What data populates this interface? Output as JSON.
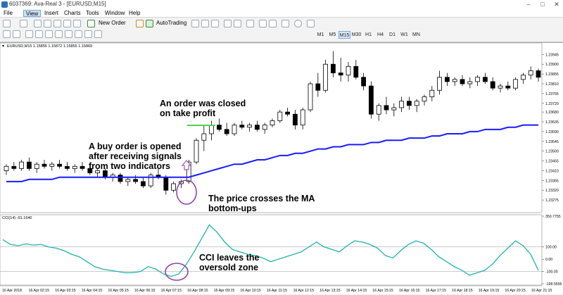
{
  "window": {
    "title": "6037369: Ava-Real 3 - [EURUSD,M15]"
  },
  "menu": [
    "File",
    "View",
    "Insert",
    "Charts",
    "Tools",
    "Window",
    "Help"
  ],
  "menu_active": "View",
  "toolbar": {
    "new_order_label": "New Order",
    "autotrading_label": "AutoTrading",
    "timeframes": [
      "M1",
      "M5",
      "M15",
      "M30",
      "H1",
      "H4",
      "D1",
      "W1",
      "MN"
    ],
    "selected_timeframe": "M15"
  },
  "chart_header": "EURUSD,M15  1.15855 1.15872 1.15855 1.15869",
  "indicator_header": "CCI(14) -91.1640",
  "annotations": {
    "order_closed": [
      "An order was closed",
      "on take profit"
    ],
    "buy_opened": [
      "A buy order is opened",
      "after receiving signals",
      "from two indicators"
    ],
    "price_crosses": [
      "The price crosses the MA",
      "bottom-ups"
    ],
    "cci_leaves": [
      "CCI leaves the",
      "oversold zone"
    ]
  },
  "chart_data": [
    {
      "type": "candlestick",
      "ylabels": [
        "1.23945",
        "1.23900",
        "1.23855",
        "1.23810",
        "1.23765",
        "1.23720",
        "1.23680",
        "1.23635",
        "1.23590",
        "1.23545",
        "1.23500",
        "1.23455",
        "1.23410",
        "1.23365",
        "1.23320",
        "1.23275"
      ],
      "xlabels": [
        "16 Apr 2018",
        "16 Apr 02:15",
        "16 Apr 03:15",
        "16 Apr 04:15",
        "16 Apr 05:15",
        "16 Apr 06:15",
        "16 Apr 07:15",
        "16 Apr 08:15",
        "16 Apr 09:15",
        "16 Apr 10:15",
        "16 Apr 11:15",
        "16 Apr 12:15",
        "16 Apr 13:15",
        "16 Apr 14:15",
        "16 Apr 15:15",
        "16 Apr 16:15",
        "16 Apr 17:15",
        "16 Apr 18:15",
        "16 Apr 19:15",
        "16 Apr 20:15",
        "16 Apr 21:15"
      ],
      "ylim": [
        1.2323,
        1.23985
      ],
      "candles": [
        {
          "o": 1.2341,
          "h": 1.2344,
          "l": 1.2339,
          "c": 1.2343
        },
        {
          "o": 1.2343,
          "h": 1.2345,
          "l": 1.2341,
          "c": 1.2342
        },
        {
          "o": 1.2342,
          "h": 1.2346,
          "l": 1.2341,
          "c": 1.2345
        },
        {
          "o": 1.2345,
          "h": 1.2347,
          "l": 1.2341,
          "c": 1.2342
        },
        {
          "o": 1.2342,
          "h": 1.2345,
          "l": 1.234,
          "c": 1.2344
        },
        {
          "o": 1.2344,
          "h": 1.2346,
          "l": 1.2342,
          "c": 1.2343
        },
        {
          "o": 1.2343,
          "h": 1.2345,
          "l": 1.2341,
          "c": 1.2344
        },
        {
          "o": 1.2344,
          "h": 1.2346,
          "l": 1.2342,
          "c": 1.2343
        },
        {
          "o": 1.2343,
          "h": 1.2345,
          "l": 1.2341,
          "c": 1.2342
        },
        {
          "o": 1.2342,
          "h": 1.2344,
          "l": 1.234,
          "c": 1.2343
        },
        {
          "o": 1.2343,
          "h": 1.2345,
          "l": 1.2341,
          "c": 1.2342
        },
        {
          "o": 1.2342,
          "h": 1.2343,
          "l": 1.2339,
          "c": 1.234
        },
        {
          "o": 1.234,
          "h": 1.2342,
          "l": 1.2338,
          "c": 1.2341
        },
        {
          "o": 1.2341,
          "h": 1.2342,
          "l": 1.2337,
          "c": 1.2338
        },
        {
          "o": 1.2338,
          "h": 1.234,
          "l": 1.2336,
          "c": 1.2339
        },
        {
          "o": 1.2339,
          "h": 1.234,
          "l": 1.2335,
          "c": 1.2336
        },
        {
          "o": 1.2336,
          "h": 1.2338,
          "l": 1.2334,
          "c": 1.2337
        },
        {
          "o": 1.2337,
          "h": 1.2339,
          "l": 1.2335,
          "c": 1.2336
        },
        {
          "o": 1.2336,
          "h": 1.2338,
          "l": 1.2333,
          "c": 1.2334
        },
        {
          "o": 1.2334,
          "h": 1.234,
          "l": 1.2333,
          "c": 1.2339
        },
        {
          "o": 1.2339,
          "h": 1.2342,
          "l": 1.2337,
          "c": 1.2338
        },
        {
          "o": 1.2338,
          "h": 1.2339,
          "l": 1.233,
          "c": 1.2332
        },
        {
          "o": 1.2332,
          "h": 1.2336,
          "l": 1.2331,
          "c": 1.2335
        },
        {
          "o": 1.2335,
          "h": 1.2337,
          "l": 1.2333,
          "c": 1.2336
        },
        {
          "o": 1.2336,
          "h": 1.2346,
          "l": 1.2335,
          "c": 1.2345
        },
        {
          "o": 1.2345,
          "h": 1.2356,
          "l": 1.2344,
          "c": 1.2355
        },
        {
          "o": 1.2355,
          "h": 1.2362,
          "l": 1.235,
          "c": 1.2358
        },
        {
          "o": 1.2358,
          "h": 1.2364,
          "l": 1.2355,
          "c": 1.2362
        },
        {
          "o": 1.2362,
          "h": 1.2365,
          "l": 1.2359,
          "c": 1.236
        },
        {
          "o": 1.236,
          "h": 1.2363,
          "l": 1.2357,
          "c": 1.2358
        },
        {
          "o": 1.2358,
          "h": 1.2363,
          "l": 1.2357,
          "c": 1.2362
        },
        {
          "o": 1.2362,
          "h": 1.2364,
          "l": 1.236,
          "c": 1.2361
        },
        {
          "o": 1.2361,
          "h": 1.2363,
          "l": 1.2359,
          "c": 1.2362
        },
        {
          "o": 1.2362,
          "h": 1.2364,
          "l": 1.2359,
          "c": 1.236
        },
        {
          "o": 1.236,
          "h": 1.2363,
          "l": 1.2358,
          "c": 1.2362
        },
        {
          "o": 1.2362,
          "h": 1.2365,
          "l": 1.2361,
          "c": 1.2364
        },
        {
          "o": 1.2364,
          "h": 1.2369,
          "l": 1.2363,
          "c": 1.2368
        },
        {
          "o": 1.2368,
          "h": 1.237,
          "l": 1.2366,
          "c": 1.2367
        },
        {
          "o": 1.2367,
          "h": 1.2369,
          "l": 1.236,
          "c": 1.2362
        },
        {
          "o": 1.2362,
          "h": 1.237,
          "l": 1.236,
          "c": 1.2369
        },
        {
          "o": 1.2369,
          "h": 1.2382,
          "l": 1.2368,
          "c": 1.2381
        },
        {
          "o": 1.2381,
          "h": 1.2386,
          "l": 1.2375,
          "c": 1.2378
        },
        {
          "o": 1.2378,
          "h": 1.2392,
          "l": 1.2377,
          "c": 1.239
        },
        {
          "o": 1.239,
          "h": 1.2396,
          "l": 1.2384,
          "c": 1.2386
        },
        {
          "o": 1.2386,
          "h": 1.2393,
          "l": 1.2382,
          "c": 1.2385
        },
        {
          "o": 1.2385,
          "h": 1.2391,
          "l": 1.2382,
          "c": 1.2389
        },
        {
          "o": 1.2389,
          "h": 1.2392,
          "l": 1.2383,
          "c": 1.2384
        },
        {
          "o": 1.2384,
          "h": 1.2386,
          "l": 1.2378,
          "c": 1.238
        },
        {
          "o": 1.238,
          "h": 1.2382,
          "l": 1.2365,
          "c": 1.2367
        },
        {
          "o": 1.2367,
          "h": 1.2372,
          "l": 1.2364,
          "c": 1.2371
        },
        {
          "o": 1.2371,
          "h": 1.2375,
          "l": 1.2367,
          "c": 1.2369
        },
        {
          "o": 1.2369,
          "h": 1.2372,
          "l": 1.2366,
          "c": 1.237
        },
        {
          "o": 1.237,
          "h": 1.2375,
          "l": 1.2368,
          "c": 1.2373
        },
        {
          "o": 1.2373,
          "h": 1.2375,
          "l": 1.2369,
          "c": 1.2371
        },
        {
          "o": 1.2371,
          "h": 1.2374,
          "l": 1.2368,
          "c": 1.2373
        },
        {
          "o": 1.2373,
          "h": 1.2376,
          "l": 1.2371,
          "c": 1.2375
        },
        {
          "o": 1.2375,
          "h": 1.238,
          "l": 1.2373,
          "c": 1.2378
        },
        {
          "o": 1.2378,
          "h": 1.2387,
          "l": 1.2376,
          "c": 1.2384
        },
        {
          "o": 1.2384,
          "h": 1.2386,
          "l": 1.238,
          "c": 1.2382
        },
        {
          "o": 1.2382,
          "h": 1.2384,
          "l": 1.238,
          "c": 1.2383
        },
        {
          "o": 1.2383,
          "h": 1.2385,
          "l": 1.238,
          "c": 1.2381
        },
        {
          "o": 1.2381,
          "h": 1.2384,
          "l": 1.2379,
          "c": 1.2382
        },
        {
          "o": 1.2382,
          "h": 1.2385,
          "l": 1.238,
          "c": 1.2384
        },
        {
          "o": 1.2384,
          "h": 1.2386,
          "l": 1.2381,
          "c": 1.2382
        },
        {
          "o": 1.2382,
          "h": 1.2384,
          "l": 1.2378,
          "c": 1.2379
        },
        {
          "o": 1.2379,
          "h": 1.2381,
          "l": 1.2377,
          "c": 1.238
        },
        {
          "o": 1.238,
          "h": 1.2382,
          "l": 1.2378,
          "c": 1.2379
        },
        {
          "o": 1.2379,
          "h": 1.2384,
          "l": 1.2378,
          "c": 1.2383
        },
        {
          "o": 1.2383,
          "h": 1.2386,
          "l": 1.2381,
          "c": 1.2385
        },
        {
          "o": 1.2385,
          "h": 1.2389,
          "l": 1.2383,
          "c": 1.2387
        },
        {
          "o": 1.2387,
          "h": 1.2388,
          "l": 1.2382,
          "c": 1.2384
        }
      ],
      "ma": [
        1.2336,
        1.2336,
        1.2336,
        1.2337,
        1.2337,
        1.2337,
        1.2337,
        1.2338,
        1.2338,
        1.2338,
        1.2338,
        1.2338,
        1.2338,
        1.2338,
        1.2338,
        1.2338,
        1.2338,
        1.2338,
        1.2338,
        1.2338,
        1.2338,
        1.2338,
        1.2338,
        1.2338,
        1.2338,
        1.2339,
        1.234,
        1.2341,
        1.2342,
        1.2343,
        1.2344,
        1.2344,
        1.2345,
        1.2346,
        1.2346,
        1.2347,
        1.2348,
        1.2348,
        1.2349,
        1.2349,
        1.235,
        1.2351,
        1.2351,
        1.2352,
        1.2352,
        1.2353,
        1.2353,
        1.2353,
        1.2354,
        1.2354,
        1.2355,
        1.2355,
        1.2355,
        1.2356,
        1.2356,
        1.2356,
        1.2357,
        1.2357,
        1.2358,
        1.2358,
        1.2358,
        1.2359,
        1.2359,
        1.236,
        1.236,
        1.236,
        1.2361,
        1.2361,
        1.2362,
        1.2362,
        1.2362
      ]
    },
    {
      "type": "line",
      "name": "CCI(14) -91.1640",
      "ylabels": [
        "350.7755",
        "100.00",
        "0.00",
        "-100.00",
        "-199.5555"
      ],
      "ylim": [
        -199.5555,
        350.7755
      ],
      "levels": [
        100,
        -100
      ],
      "values": [
        160,
        120,
        110,
        125,
        115,
        120,
        100,
        90,
        70,
        40,
        20,
        -20,
        -60,
        -80,
        -90,
        -100,
        -110,
        -110,
        -100,
        -60,
        -80,
        -120,
        -140,
        -120,
        -40,
        60,
        170,
        280,
        220,
        140,
        80,
        60,
        40,
        30,
        10,
        -20,
        0,
        20,
        40,
        60,
        100,
        140,
        100,
        80,
        60,
        110,
        150,
        140,
        120,
        90,
        30,
        10,
        70,
        120,
        150,
        130,
        80,
        20,
        -20,
        -60,
        -90,
        -130,
        -110,
        -90,
        -40,
        30,
        90,
        150,
        110,
        40,
        -91
      ]
    }
  ]
}
